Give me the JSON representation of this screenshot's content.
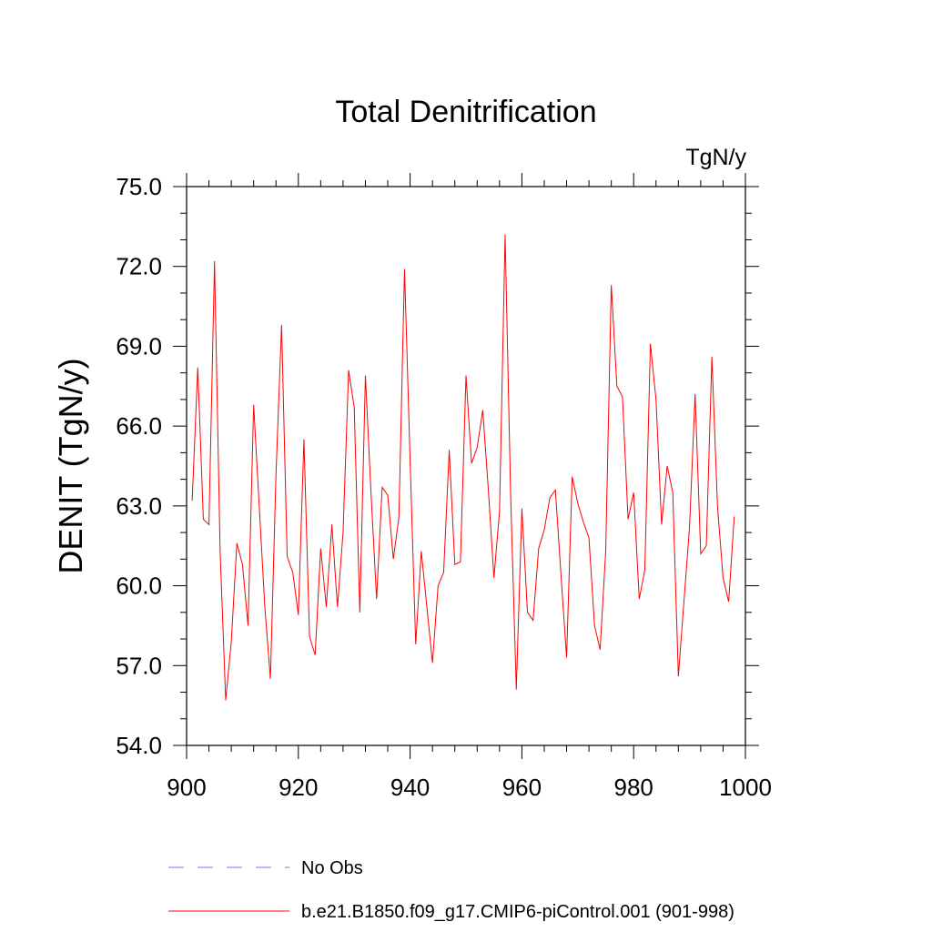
{
  "chart_data": {
    "type": "line",
    "title": "Total Denitrification",
    "units": "TgN/y",
    "ylabel": "DENIT  (TgN/y)",
    "xlabel": "",
    "xlim": [
      900,
      1000
    ],
    "ylim": [
      54.0,
      75.0
    ],
    "xticks": [
      900,
      920,
      940,
      960,
      980,
      1000
    ],
    "xtick_labels": [
      "900",
      "920",
      "940",
      "960",
      "980",
      "1000"
    ],
    "yticks": [
      54.0,
      57.0,
      60.0,
      63.0,
      66.0,
      69.0,
      72.0,
      75.0
    ],
    "ytick_labels": [
      "54.0",
      "57.0",
      "60.0",
      "63.0",
      "66.0",
      "69.0",
      "72.0",
      "75.0"
    ],
    "grid": false,
    "series": [
      {
        "name": "b.e21.B1850.f09_g17.CMIP6-piControl.001 (901-998)",
        "color": "#ff0000",
        "style": "solid",
        "x": [
          901,
          902,
          903,
          904,
          905,
          906,
          907,
          908,
          909,
          910,
          911,
          912,
          913,
          914,
          915,
          916,
          917,
          918,
          919,
          920,
          921,
          922,
          923,
          924,
          925,
          926,
          927,
          928,
          929,
          930,
          931,
          932,
          933,
          934,
          935,
          936,
          937,
          938,
          939,
          940,
          941,
          942,
          943,
          944,
          945,
          946,
          947,
          948,
          949,
          950,
          951,
          952,
          953,
          954,
          955,
          956,
          957,
          958,
          959,
          960,
          961,
          962,
          963,
          964,
          965,
          966,
          967,
          968,
          969,
          970,
          971,
          972,
          973,
          974,
          975,
          976,
          977,
          978,
          979,
          980,
          981,
          982,
          983,
          984,
          985,
          986,
          987,
          988,
          989,
          990,
          991,
          992,
          993,
          994,
          995,
          996,
          997,
          998
        ],
        "values": [
          63.2,
          68.2,
          62.5,
          62.3,
          72.2,
          61.3,
          55.7,
          57.9,
          61.6,
          60.8,
          58.5,
          66.8,
          63.0,
          59.2,
          56.5,
          64.2,
          69.8,
          61.1,
          60.5,
          58.9,
          65.5,
          58.1,
          57.4,
          61.4,
          59.2,
          62.3,
          59.2,
          62.0,
          68.1,
          66.7,
          59.0,
          67.9,
          63.5,
          59.5,
          63.7,
          63.4,
          61.0,
          62.6,
          71.9,
          64.7,
          57.8,
          61.3,
          59.2,
          57.1,
          60.0,
          60.5,
          65.1,
          60.8,
          60.9,
          67.9,
          64.6,
          65.2,
          66.6,
          63.6,
          60.3,
          62.8,
          73.2,
          63.3,
          56.1,
          62.9,
          59.0,
          58.7,
          61.4,
          62.1,
          63.3,
          63.6,
          60.4,
          57.3,
          64.1,
          63.1,
          62.4,
          61.8,
          58.5,
          57.6,
          61.3,
          71.3,
          67.5,
          67.1,
          62.5,
          63.5,
          59.5,
          60.6,
          69.1,
          67.0,
          62.3,
          64.5,
          63.5,
          56.6,
          59.4,
          62.2,
          67.2,
          61.2,
          61.5,
          68.6,
          63.0,
          60.3,
          59.4,
          62.6
        ]
      },
      {
        "name": "No Obs",
        "color": "#7070ff",
        "style": "dashed",
        "x": [],
        "values": []
      }
    ]
  }
}
